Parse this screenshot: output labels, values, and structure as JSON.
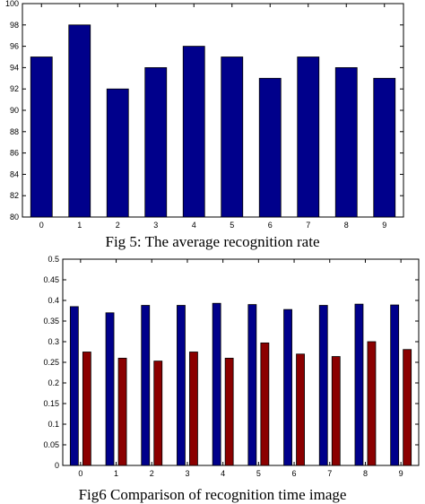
{
  "chart_data": [
    {
      "type": "bar",
      "title": "",
      "caption": "Fig 5: The average recognition rate",
      "xlabel": "",
      "ylabel": "",
      "categories": [
        "0",
        "1",
        "2",
        "3",
        "4",
        "5",
        "6",
        "7",
        "8",
        "9"
      ],
      "values": [
        95,
        98,
        92,
        94,
        96,
        95,
        93,
        95,
        94,
        93
      ],
      "ylim": [
        80,
        100
      ],
      "yticks": [
        80,
        82,
        84,
        86,
        88,
        90,
        92,
        94,
        96,
        98,
        100
      ],
      "grid": false,
      "color": "#00008b"
    },
    {
      "type": "bar",
      "title": "",
      "caption": "Fig6 Comparison of recognition time image",
      "xlabel": "",
      "ylabel": "",
      "categories": [
        "0",
        "1",
        "2",
        "3",
        "4",
        "5",
        "6",
        "7",
        "8",
        "9"
      ],
      "series": [
        {
          "values": [
            0.385,
            0.37,
            0.388,
            0.388,
            0.393,
            0.39,
            0.378,
            0.388,
            0.391,
            0.389
          ],
          "color": "#00008b"
        },
        {
          "values": [
            0.275,
            0.26,
            0.253,
            0.275,
            0.26,
            0.297,
            0.27,
            0.264,
            0.3,
            0.281
          ],
          "color": "#8b0000"
        }
      ],
      "ylim": [
        0,
        0.5
      ],
      "yticks": [
        0,
        0.05,
        0.1,
        0.15,
        0.2,
        0.25,
        0.3,
        0.35,
        0.4,
        0.45,
        0.5
      ],
      "grid": false
    }
  ]
}
